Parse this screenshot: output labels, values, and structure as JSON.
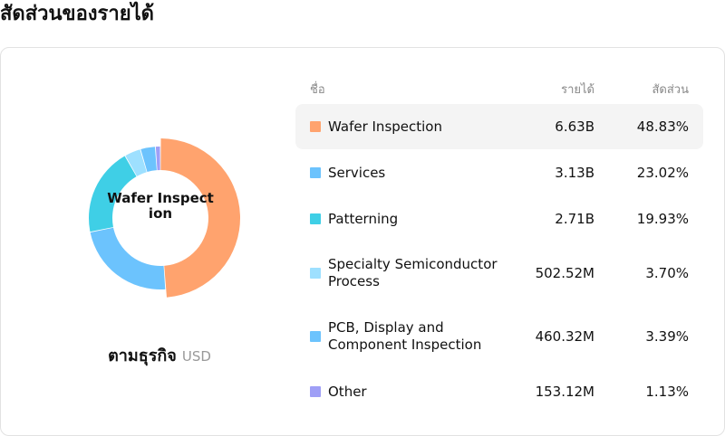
{
  "page_title": "สัดส่วนของรายได้",
  "center_label": "Wafer Inspection",
  "group": {
    "name": "ตามธุรกิจ",
    "unit": "USD"
  },
  "table_headers": {
    "name": "ชื่อ",
    "revenue": "รายได้",
    "share": "สัดส่วน"
  },
  "rows": [
    {
      "name": "Wafer Inspection",
      "revenue": "6.63B",
      "share": "48.83%",
      "color": "#ffa36e"
    },
    {
      "name": "Services",
      "revenue": "3.13B",
      "share": "23.02%",
      "color": "#6cc3fd"
    },
    {
      "name": "Patterning",
      "revenue": "2.71B",
      "share": "19.93%",
      "color": "#3fcfe6"
    },
    {
      "name": "Specialty Semiconductor Process",
      "revenue": "502.52M",
      "share": "3.70%",
      "color": "#9ee0ff"
    },
    {
      "name": "PCB, Display and Component Inspection",
      "revenue": "460.32M",
      "share": "3.39%",
      "color": "#6cc3fd"
    },
    {
      "name": "Other",
      "revenue": "153.12M",
      "share": "1.13%",
      "color": "#9f9ff6"
    }
  ],
  "chart_data": {
    "type": "pie",
    "categories": [
      "Wafer Inspection",
      "Services",
      "Patterning",
      "Specialty Semiconductor Process",
      "PCB, Display and Component Inspection",
      "Other"
    ],
    "values": [
      48.83,
      23.02,
      19.93,
      3.7,
      3.39,
      1.13
    ],
    "colors": [
      "#ffa36e",
      "#6cc3fd",
      "#3fcfe6",
      "#9ee0ff",
      "#6cc3fd",
      "#9f9ff6"
    ],
    "highlight_index": 0
  }
}
